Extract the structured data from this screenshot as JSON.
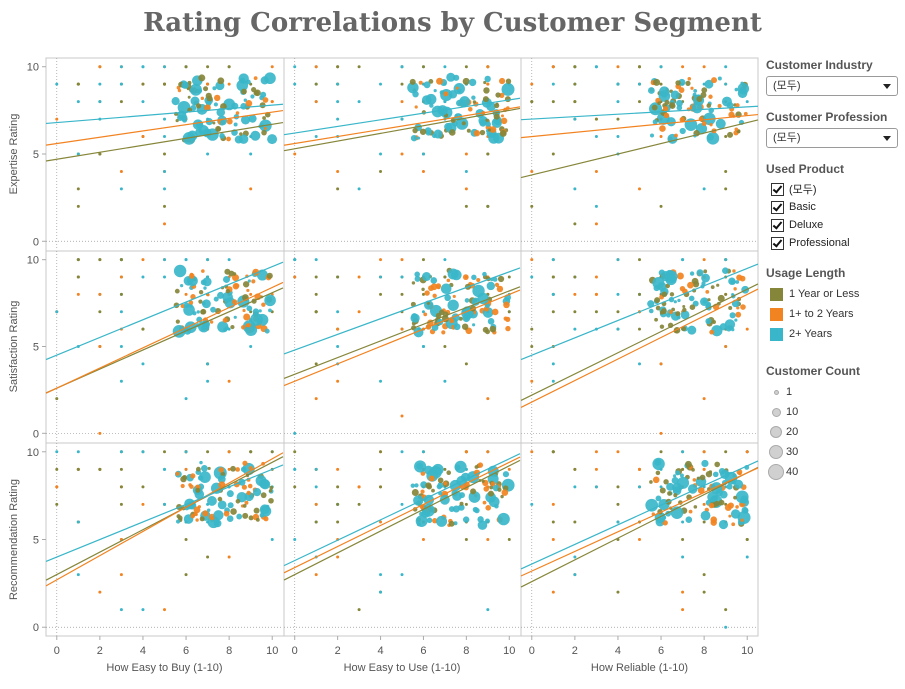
{
  "title": "Rating Correlations by Customer Segment",
  "colors": {
    "1 Year or Less": "#86863a",
    "1+ to 2 Years": "#f28321",
    "2+ Years": "#39b6c9"
  },
  "filters": {
    "industry": {
      "label": "Customer Industry",
      "value": "(모두)"
    },
    "profession": {
      "label": "Customer Profession",
      "value": "(모두)"
    },
    "product": {
      "label": "Used Product",
      "options": [
        "(모두)",
        "Basic",
        "Deluxe",
        "Professional"
      ]
    }
  },
  "legend": {
    "usage_title": "Usage Length",
    "usage_items": [
      "1 Year or Less",
      "1+ to 2 Years",
      "2+ Years"
    ],
    "count_title": "Customer Count",
    "count_items": [
      "1",
      "10",
      "20",
      "30",
      "40"
    ]
  },
  "chart_data": {
    "type": "scatter",
    "title": "Rating Correlations by Customer Segment",
    "columns": [
      "How Easy to Buy (1-10)",
      "How Easy to Use (1-10)",
      "How Reliable (1-10)"
    ],
    "rows": [
      "Expertise Rating",
      "Satisfaction Rating",
      "Recommendation Rating"
    ],
    "xlim": [
      -0.5,
      10.5
    ],
    "ylim": [
      -0.5,
      10.5
    ],
    "x_ticks": [
      "0",
      "2",
      "4",
      "6",
      "8",
      "10"
    ],
    "y_ticks": [
      "0",
      "5",
      "10"
    ],
    "series": [
      "1 Year or Less",
      "1+ to 2 Years",
      "2+ Years"
    ],
    "trend_lines": [
      [
        {
          "series": "1 Year or Less",
          "y_at_0": 4.7,
          "y_at_10": 6.7
        },
        {
          "series": "1+ to 2 Years",
          "y_at_0": 5.6,
          "y_at_10": 7.4
        },
        {
          "series": "2+ Years",
          "y_at_0": 6.8,
          "y_at_10": 7.8
        }
      ],
      [
        {
          "series": "1 Year or Less",
          "y_at_0": 5.3,
          "y_at_10": 7.5
        },
        {
          "series": "1+ to 2 Years",
          "y_at_0": 5.6,
          "y_at_10": 7.6
        },
        {
          "series": "2+ Years",
          "y_at_0": 6.2,
          "y_at_10": 8.1
        }
      ],
      [
        {
          "series": "1 Year or Less",
          "y_at_0": 3.8,
          "y_at_10": 6.8
        },
        {
          "series": "1+ to 2 Years",
          "y_at_0": 6.0,
          "y_at_10": 7.2
        },
        {
          "series": "2+ Years",
          "y_at_0": 7.0,
          "y_at_10": 7.7
        }
      ],
      [
        {
          "series": "1 Year or Less",
          "y_at_0": 2.6,
          "y_at_10": 8.1
        },
        {
          "series": "1+ to 2 Years",
          "y_at_0": 2.6,
          "y_at_10": 8.4
        },
        {
          "series": "2+ Years",
          "y_at_0": 4.5,
          "y_at_10": 9.6
        }
      ],
      [
        {
          "series": "1 Year or Less",
          "y_at_0": 3.4,
          "y_at_10": 8.2
        },
        {
          "series": "1+ to 2 Years",
          "y_at_0": 3.0,
          "y_at_10": 8.0
        },
        {
          "series": "2+ Years",
          "y_at_0": 4.8,
          "y_at_10": 9.3
        }
      ],
      [
        {
          "series": "1 Year or Less",
          "y_at_0": 2.2,
          "y_at_10": 8.3
        },
        {
          "series": "1+ to 2 Years",
          "y_at_0": 1.8,
          "y_at_10": 8.0
        },
        {
          "series": "2+ Years",
          "y_at_0": 4.5,
          "y_at_10": 9.5
        }
      ],
      [
        {
          "series": "1 Year or Less",
          "y_at_0": 3.0,
          "y_at_10": 9.4
        },
        {
          "series": "1+ to 2 Years",
          "y_at_0": 2.7,
          "y_at_10": 9.6
        },
        {
          "series": "2+ Years",
          "y_at_0": 4.0,
          "y_at_10": 9.0
        }
      ],
      [
        {
          "series": "1 Year or Less",
          "y_at_0": 3.0,
          "y_at_10": 9.2
        },
        {
          "series": "1+ to 2 Years",
          "y_at_0": 3.4,
          "y_at_10": 9.4
        },
        {
          "series": "2+ Years",
          "y_at_0": 3.8,
          "y_at_10": 9.6
        }
      ],
      [
        {
          "series": "1 Year or Less",
          "y_at_0": 2.6,
          "y_at_10": 8.8
        },
        {
          "series": "1+ to 2 Years",
          "y_at_0": 3.2,
          "y_at_10": 8.8
        },
        {
          "series": "2+ Years",
          "y_at_0": 3.6,
          "y_at_10": 9.2
        }
      ]
    ],
    "points_note": "Bubble sizes encode Customer Count (1–40); points concentrated near x≈7–9, y≈7–9."
  }
}
